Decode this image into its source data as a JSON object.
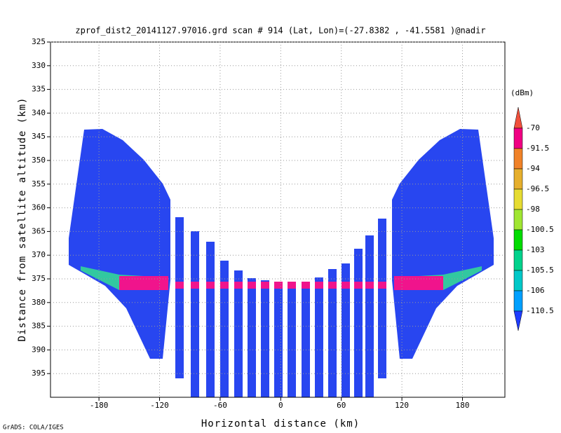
{
  "chart_data": {
    "type": "heatmap",
    "title": "zprof_dist2_20141127.97016.grd  scan # 914  (Lat, Lon)=(-27.8382 , -41.5581 )@nadir",
    "x_label": "Horizontal distance (km)",
    "y_label": "Distance from satellite altitude (km)",
    "xlim": [
      -228,
      222
    ],
    "ylim": [
      400,
      325
    ],
    "xticks": [
      -180,
      -120,
      -60,
      0,
      60,
      120,
      180
    ],
    "yticks": [
      325,
      330,
      335,
      340,
      345,
      350,
      355,
      360,
      365,
      370,
      375,
      380,
      385,
      390,
      395
    ],
    "grid": true,
    "colorbar": {
      "title": "(dBm)",
      "levels": [
        -70,
        -91.5,
        -94,
        -96.5,
        -98,
        -100.5,
        -103,
        -105.5,
        -106,
        -110.5
      ],
      "colors": [
        "#f0503c",
        "#f00082",
        "#f08228",
        "#e6af2d",
        "#e6dc32",
        "#a0e632",
        "#00dc00",
        "#00d28c",
        "#00c8c8",
        "#00a0ff",
        "#1e3cff"
      ]
    },
    "credit": "GrADS: COLA/IGES"
  }
}
